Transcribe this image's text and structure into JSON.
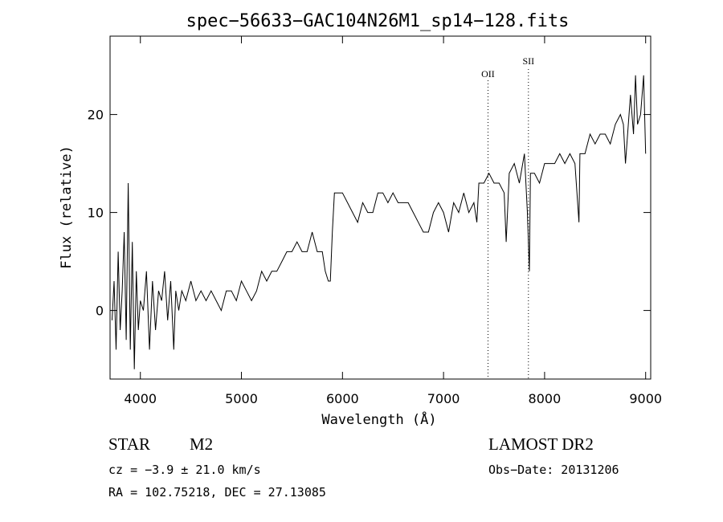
{
  "chart_data": {
    "type": "line",
    "title": "spec−56633−GAC104N26M1_sp14−128.fits",
    "xlabel": "Wavelength (Å)",
    "ylabel": "Flux (relative)",
    "xlim": [
      3700,
      9050
    ],
    "ylim": [
      -7,
      28
    ],
    "x_ticks": [
      4000,
      5000,
      6000,
      7000,
      8000,
      9000
    ],
    "x_tick_labels": [
      "4000",
      "5000",
      "6000",
      "7000",
      "8000",
      "9000"
    ],
    "y_ticks": [
      0,
      10,
      20
    ],
    "y_tick_labels": [
      "0",
      "10",
      "20"
    ],
    "grid": false,
    "line_color": "#000000",
    "annotations": [
      {
        "label": "OII",
        "x": 7440
      },
      {
        "label": "SII",
        "x": 7840
      }
    ],
    "series": [
      {
        "x": [
          3720,
          3740,
          3760,
          3780,
          3800,
          3820,
          3840,
          3860,
          3880,
          3900,
          3920,
          3940,
          3960,
          3980,
          4000,
          4030,
          4060,
          4090,
          4120,
          4150,
          4180,
          4210,
          4240,
          4270,
          4300,
          4330,
          4350,
          4380,
          4410,
          4450,
          4500,
          4550,
          4600,
          4650,
          4700,
          4750,
          4800,
          4850,
          4900,
          4950,
          5000,
          5050,
          5100,
          5150,
          5200,
          5250,
          5300,
          5350,
          5400,
          5450,
          5500,
          5550,
          5600,
          5650,
          5700,
          5750,
          5800,
          5830,
          5860,
          5880,
          5900,
          5920,
          5950,
          6000,
          6050,
          6100,
          6150,
          6200,
          6250,
          6300,
          6350,
          6400,
          6450,
          6500,
          6550,
          6600,
          6650,
          6700,
          6750,
          6800,
          6850,
          6900,
          6950,
          7000,
          7050,
          7100,
          7150,
          7200,
          7250,
          7300,
          7330,
          7350,
          7400,
          7450,
          7500,
          7550,
          7600,
          7620,
          7650,
          7700,
          7750,
          7800,
          7830,
          7850,
          7860,
          7900,
          7950,
          8000,
          8050,
          8100,
          8150,
          8200,
          8250,
          8300,
          8340,
          8350,
          8360,
          8400,
          8450,
          8500,
          8550,
          8600,
          8650,
          8700,
          8750,
          8780,
          8800,
          8850,
          8880,
          8900,
          8920,
          8950,
          8980,
          9000
        ],
        "values": [
          -1,
          3,
          -4,
          6,
          -2,
          2,
          8,
          -3,
          13,
          -4,
          7,
          -6,
          4,
          -2,
          1,
          0,
          4,
          -4,
          3,
          -2,
          2,
          1,
          4,
          -1,
          3,
          -4,
          2,
          0,
          2,
          1,
          3,
          1,
          2,
          1,
          2,
          1,
          0,
          2,
          2,
          1,
          3,
          2,
          1,
          2,
          4,
          3,
          4,
          4,
          5,
          6,
          6,
          7,
          6,
          6,
          8,
          6,
          6,
          4,
          3,
          3,
          8,
          12,
          12,
          12,
          11,
          10,
          9,
          11,
          10,
          10,
          12,
          12,
          11,
          12,
          11,
          11,
          11,
          10,
          9,
          8,
          8,
          10,
          11,
          10,
          8,
          11,
          10,
          12,
          10,
          11,
          9,
          13,
          13,
          14,
          13,
          13,
          12,
          7,
          14,
          15,
          13,
          16,
          10,
          4,
          14,
          14,
          13,
          15,
          15,
          15,
          16,
          15,
          16,
          15,
          9,
          16,
          16,
          16,
          18,
          17,
          18,
          18,
          17,
          19,
          20,
          19,
          15,
          22,
          18,
          24,
          19,
          20,
          24,
          16
        ]
      }
    ]
  },
  "info": {
    "object_class": "STAR",
    "subclass": "M2",
    "survey": "LAMOST DR2",
    "redshift": "cz = −3.9 ± 21.0 km/s",
    "obs_date": "Obs−Date: 20131206",
    "coords": "RA = 102.75218, DEC =  27.13085"
  }
}
